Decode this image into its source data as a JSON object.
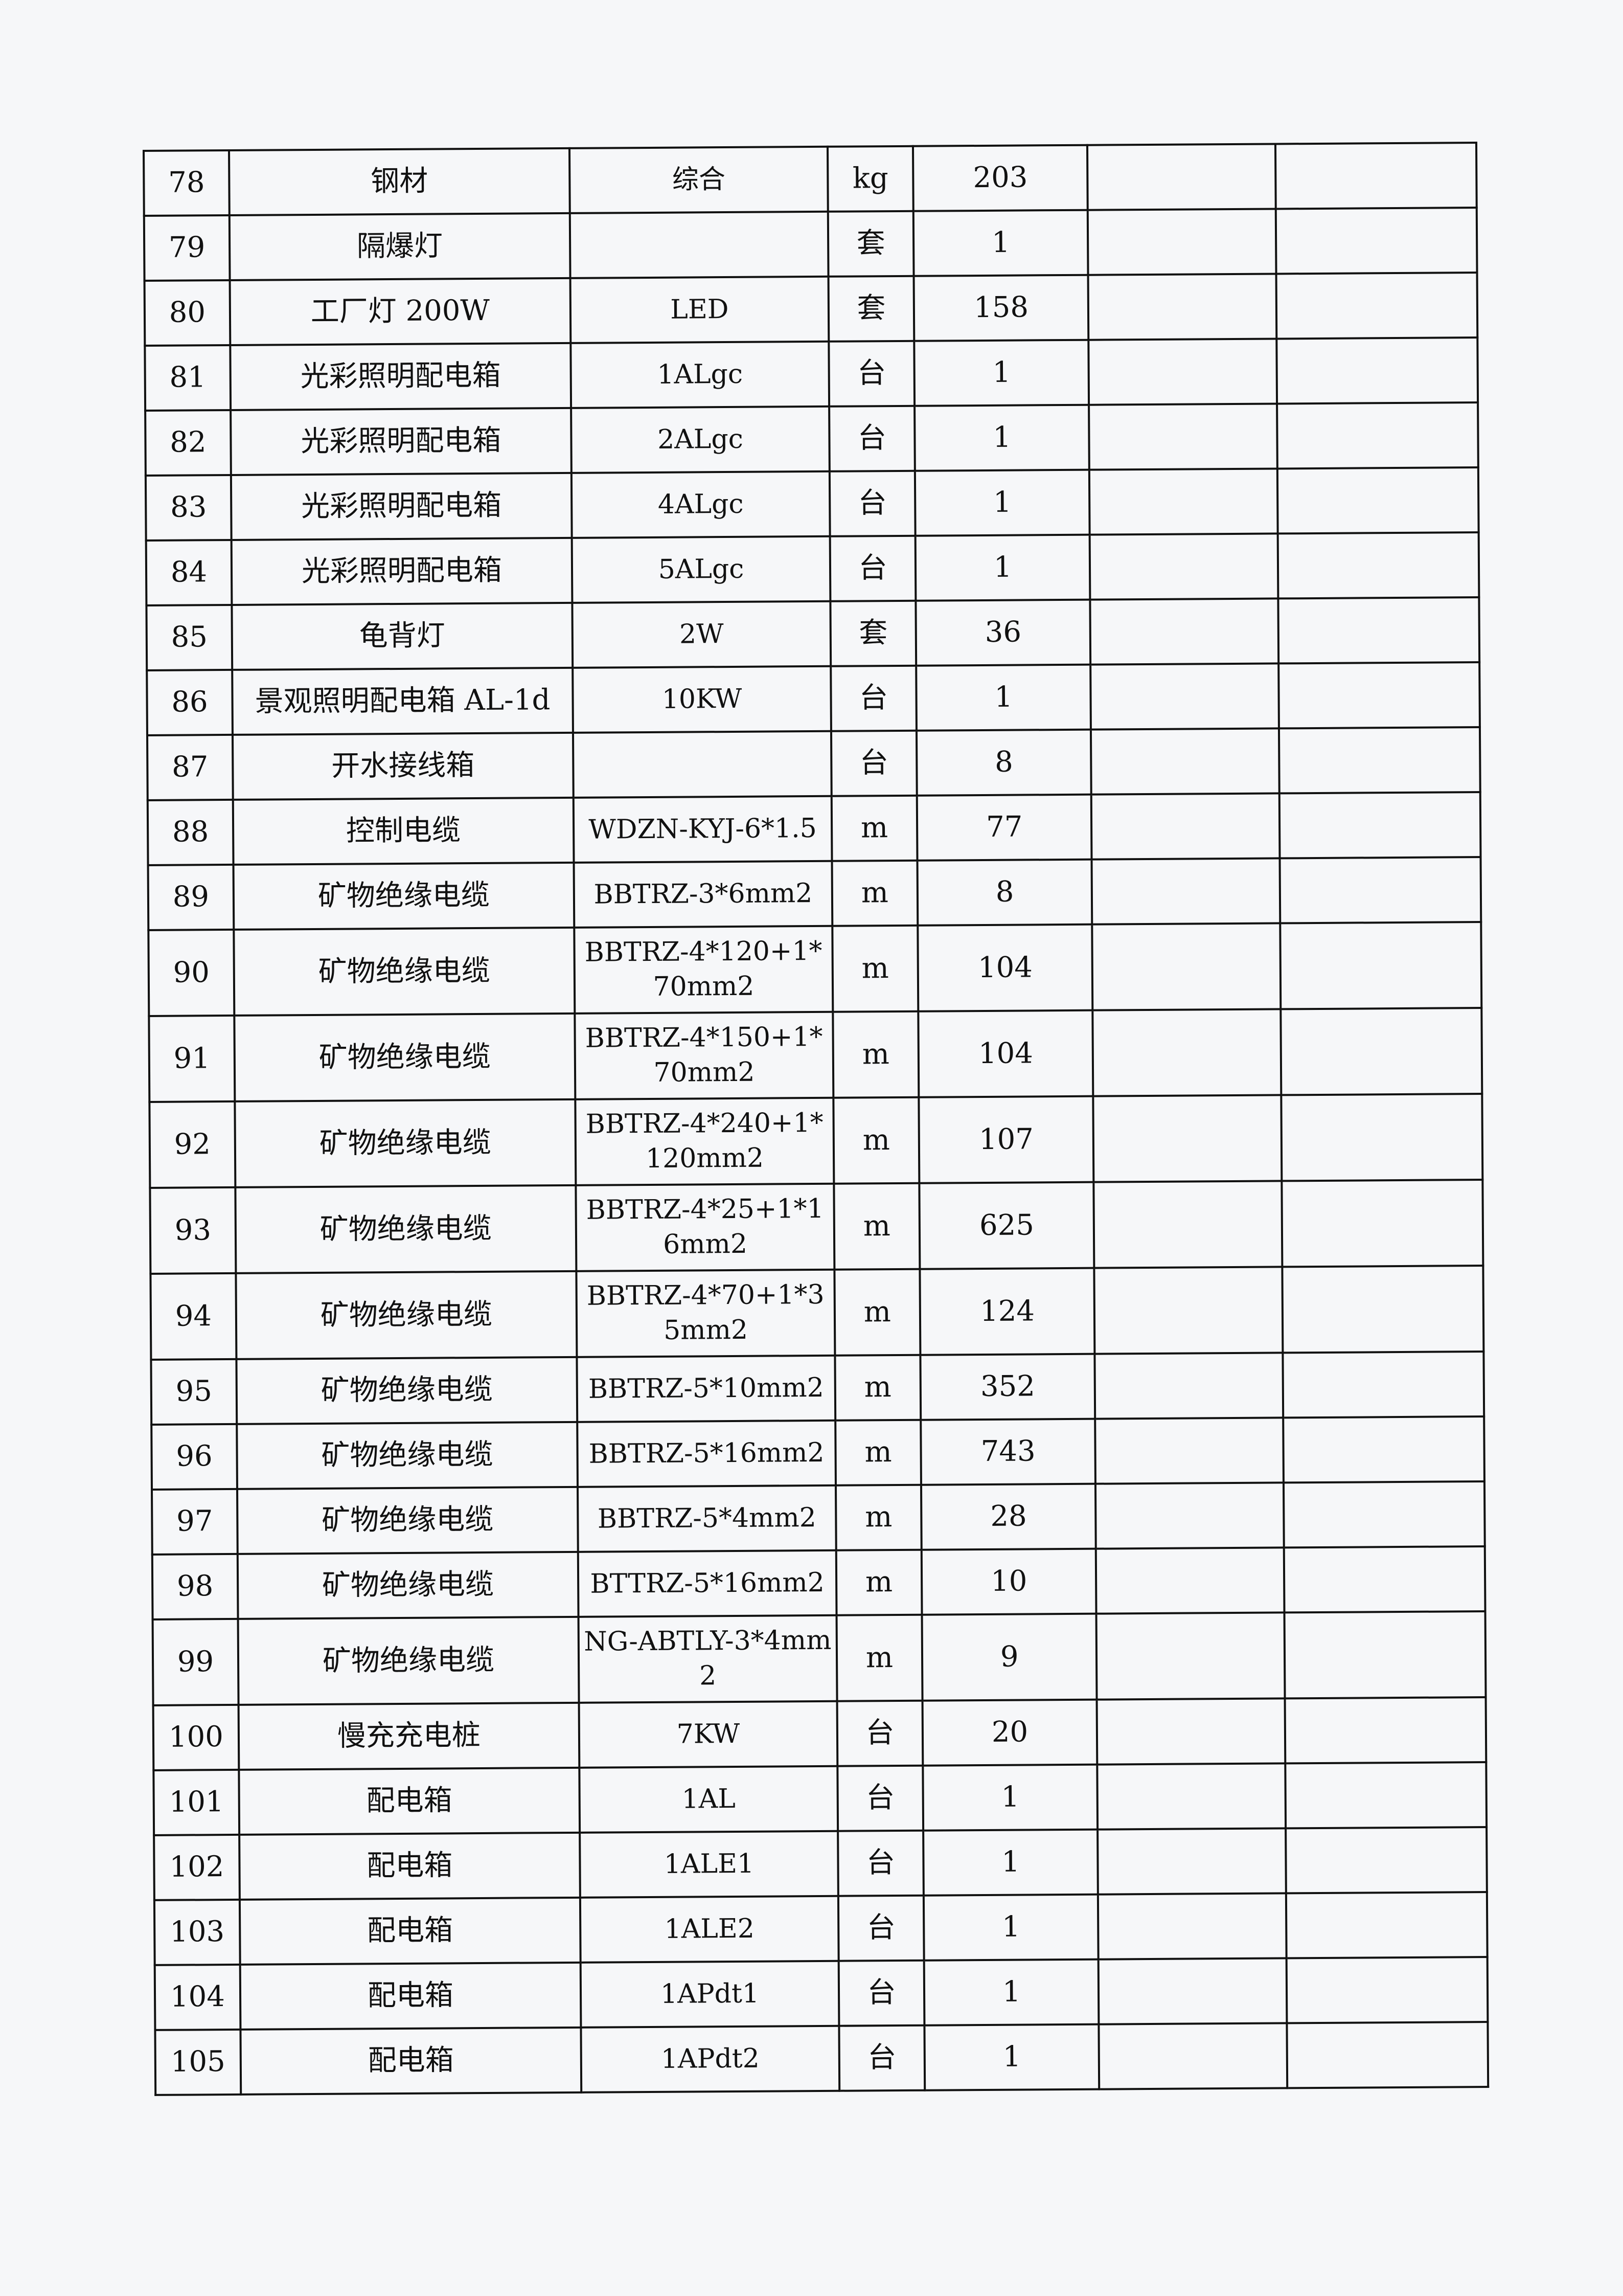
{
  "rows": [
    {
      "no": "78",
      "name": "钢材",
      "spec": "综合",
      "unit": "kg",
      "qty": "203"
    },
    {
      "no": "79",
      "name": "隔爆灯",
      "spec": "",
      "unit": "套",
      "qty": "1"
    },
    {
      "no": "80",
      "name": "工厂灯 200W",
      "spec": "LED",
      "unit": "套",
      "qty": "158"
    },
    {
      "no": "81",
      "name": "光彩照明配电箱",
      "spec": "1ALgc",
      "unit": "台",
      "qty": "1"
    },
    {
      "no": "82",
      "name": "光彩照明配电箱",
      "spec": "2ALgc",
      "unit": "台",
      "qty": "1"
    },
    {
      "no": "83",
      "name": "光彩照明配电箱",
      "spec": "4ALgc",
      "unit": "台",
      "qty": "1"
    },
    {
      "no": "84",
      "name": "光彩照明配电箱",
      "spec": "5ALgc",
      "unit": "台",
      "qty": "1"
    },
    {
      "no": "85",
      "name": "龟背灯",
      "spec": "2W",
      "unit": "套",
      "qty": "36"
    },
    {
      "no": "86",
      "name": "景观照明配电箱 AL-1d",
      "spec": "10KW",
      "unit": "台",
      "qty": "1"
    },
    {
      "no": "87",
      "name": "开水接线箱",
      "spec": "",
      "unit": "台",
      "qty": "8"
    },
    {
      "no": "88",
      "name": "控制电缆",
      "spec": "WDZN-KYJ-6*1.5",
      "unit": "m",
      "qty": "77"
    },
    {
      "no": "89",
      "name": "矿物绝缘电缆",
      "spec": "BBTRZ-3*6mm2",
      "unit": "m",
      "qty": "8"
    },
    {
      "no": "90",
      "name": "矿物绝缘电缆",
      "spec": "BBTRZ-4*120+1*70mm2",
      "unit": "m",
      "qty": "104"
    },
    {
      "no": "91",
      "name": "矿物绝缘电缆",
      "spec": "BBTRZ-4*150+1*70mm2",
      "unit": "m",
      "qty": "104"
    },
    {
      "no": "92",
      "name": "矿物绝缘电缆",
      "spec": "BBTRZ-4*240+1*120mm2",
      "unit": "m",
      "qty": "107"
    },
    {
      "no": "93",
      "name": "矿物绝缘电缆",
      "spec": "BBTRZ-4*25+1*16mm2",
      "unit": "m",
      "qty": "625"
    },
    {
      "no": "94",
      "name": "矿物绝缘电缆",
      "spec": "BBTRZ-4*70+1*35mm2",
      "unit": "m",
      "qty": "124"
    },
    {
      "no": "95",
      "name": "矿物绝缘电缆",
      "spec": "BBTRZ-5*10mm2",
      "unit": "m",
      "qty": "352"
    },
    {
      "no": "96",
      "name": "矿物绝缘电缆",
      "spec": "BBTRZ-5*16mm2",
      "unit": "m",
      "qty": "743"
    },
    {
      "no": "97",
      "name": "矿物绝缘电缆",
      "spec": "BBTRZ-5*4mm2",
      "unit": "m",
      "qty": "28"
    },
    {
      "no": "98",
      "name": "矿物绝缘电缆",
      "spec": "BTTRZ-5*16mm2",
      "unit": "m",
      "qty": "10"
    },
    {
      "no": "99",
      "name": "矿物绝缘电缆",
      "spec": "NG-ABTLY-3*4mm2",
      "unit": "m",
      "qty": "9"
    },
    {
      "no": "100",
      "name": "慢充充电桩",
      "spec": "7KW",
      "unit": "台",
      "qty": "20"
    },
    {
      "no": "101",
      "name": "配电箱",
      "spec": "1AL",
      "unit": "台",
      "qty": "1"
    },
    {
      "no": "102",
      "name": "配电箱",
      "spec": "1ALE1",
      "unit": "台",
      "qty": "1"
    },
    {
      "no": "103",
      "name": "配电箱",
      "spec": "1ALE2",
      "unit": "台",
      "qty": "1"
    },
    {
      "no": "104",
      "name": "配电箱",
      "spec": "1APdt1",
      "unit": "台",
      "qty": "1"
    },
    {
      "no": "105",
      "name": "配电箱",
      "spec": "1APdt2",
      "unit": "台",
      "qty": "1"
    }
  ]
}
